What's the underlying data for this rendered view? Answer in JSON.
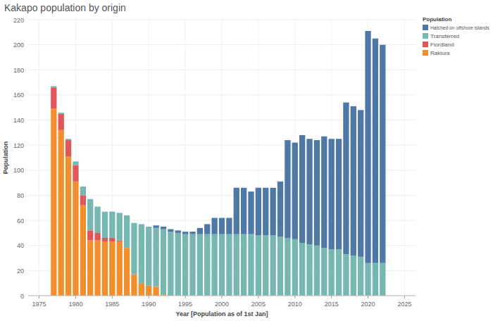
{
  "chart_data": {
    "type": "bar",
    "stacked": true,
    "title": "Kakapo population by origin",
    "x_label": "Year [Population as of 1st Jan]",
    "y_label": "Population",
    "legend_title": "Population",
    "legend": "right",
    "grid": true,
    "x": [
      1977,
      1978,
      1979,
      1980,
      1981,
      1982,
      1983,
      1984,
      1985,
      1986,
      1987,
      1988,
      1989,
      1990,
      1991,
      1992,
      1993,
      1994,
      1995,
      1996,
      1997,
      1998,
      1999,
      2000,
      2001,
      2002,
      2003,
      2004,
      2005,
      2006,
      2007,
      2008,
      2009,
      2010,
      2011,
      2012,
      2013,
      2014,
      2015,
      2016,
      2017,
      2018,
      2019,
      2020,
      2021,
      2022
    ],
    "xlim": [
      1973.5,
      2026.5
    ],
    "xticks": [
      1975,
      1980,
      1985,
      1990,
      1995,
      2000,
      2005,
      2010,
      2015,
      2020,
      2025
    ],
    "ylim": [
      0,
      220
    ],
    "yticks": [
      0,
      20,
      40,
      60,
      80,
      100,
      120,
      140,
      160,
      180,
      200,
      220
    ],
    "series": [
      {
        "name": "Rakiura",
        "color": "#f28e2b",
        "values": [
          149,
          132,
          111,
          91,
          72,
          44,
          44,
          43,
          43,
          43,
          38,
          17,
          10,
          8,
          7,
          1,
          0,
          0,
          0,
          0,
          0,
          0,
          0,
          0,
          0,
          0,
          0,
          0,
          0,
          0,
          0,
          0,
          0,
          0,
          0,
          0,
          0,
          0,
          0,
          0,
          0,
          0,
          0,
          0,
          0,
          0
        ]
      },
      {
        "name": "Fiordland",
        "color": "#e15759",
        "values": [
          17,
          13,
          13,
          13,
          8,
          8,
          6,
          3,
          3,
          1,
          0,
          0,
          0,
          0,
          0,
          0,
          0,
          0,
          0,
          0,
          0,
          0,
          0,
          0,
          0,
          0,
          0,
          0,
          0,
          0,
          0,
          0,
          0,
          0,
          0,
          0,
          0,
          0,
          0,
          0,
          0,
          0,
          0,
          0,
          0,
          0
        ]
      },
      {
        "name": "Transferred",
        "color": "#76b7b2",
        "values": [
          1,
          1,
          1,
          3,
          7,
          25,
          21,
          21,
          21,
          22,
          26,
          41,
          47,
          47,
          47,
          52,
          51,
          50,
          49,
          49,
          49,
          49,
          49,
          49,
          49,
          49,
          49,
          49,
          48,
          48,
          48,
          47,
          46,
          45,
          42,
          41,
          40,
          38,
          37,
          37,
          33,
          32,
          31,
          26,
          26,
          26
        ]
      },
      {
        "name": "Hatched on offshore islands",
        "color": "#4e79a7",
        "values": [
          0,
          0,
          0,
          0,
          0,
          0,
          0,
          0,
          0,
          0,
          0,
          0,
          0,
          0,
          2,
          2,
          2,
          2,
          2,
          2,
          5,
          8,
          13,
          13,
          13,
          37,
          37,
          34,
          38,
          38,
          38,
          44,
          78,
          77,
          86,
          84,
          84,
          89,
          88,
          88,
          121,
          119,
          117,
          185,
          179,
          174
        ]
      }
    ]
  }
}
